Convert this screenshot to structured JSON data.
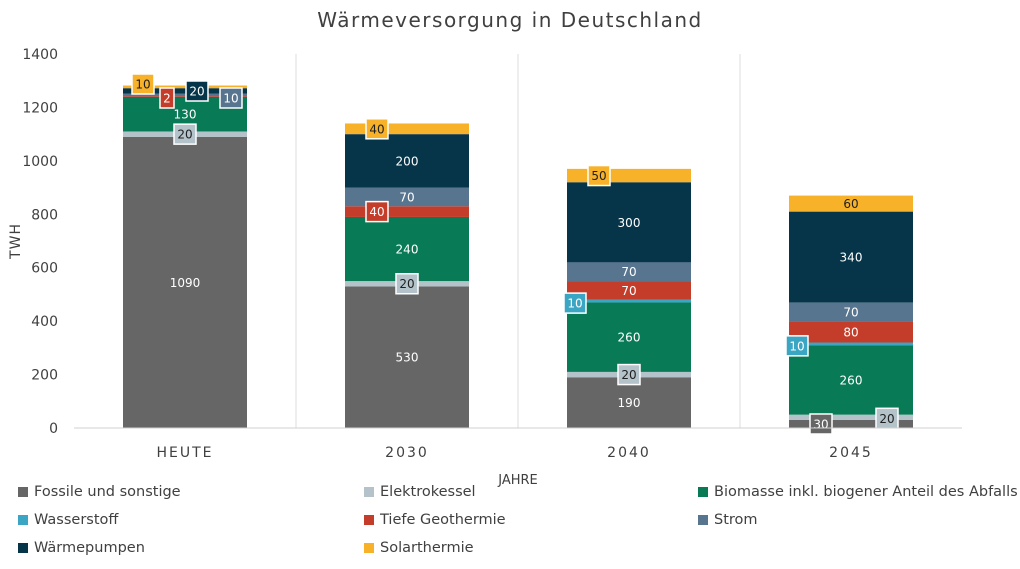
{
  "chart_data": {
    "type": "bar",
    "stacked": true,
    "title": "Wärmeversorgung in Deutschland",
    "xlabel": "JAHRE",
    "ylabel": "TWH",
    "ylim": [
      0,
      1400
    ],
    "yticks": [
      0,
      200,
      400,
      600,
      800,
      1000,
      1200,
      1400
    ],
    "categories": [
      "HEUTE",
      "2030",
      "2040",
      "2045"
    ],
    "grid": "vertical separators",
    "legend_position": "bottom",
    "series": [
      {
        "name": "Fossile und sonstige",
        "color": "#666666",
        "values": [
          1090,
          530,
          190,
          30
        ],
        "labels": [
          "1090",
          "530",
          "190",
          "30"
        ]
      },
      {
        "name": "Elektrokessel",
        "color": "#b3c3c9",
        "values": [
          20,
          20,
          20,
          20
        ],
        "labels": [
          "20",
          "20",
          "20",
          "20"
        ]
      },
      {
        "name": "Biomasse inkl. biogener Anteil des Abfalls",
        "color": "#087a55",
        "values": [
          130,
          240,
          260,
          260
        ],
        "labels": [
          "130",
          "240",
          "260",
          "260"
        ]
      },
      {
        "name": "Wasserstoff",
        "color": "#3aa6c4",
        "values": [
          0,
          0,
          10,
          10
        ],
        "labels": [
          "",
          "",
          "10",
          "10"
        ]
      },
      {
        "name": "Tiefe Geothermie",
        "color": "#c43c2a",
        "values": [
          2,
          40,
          70,
          80
        ],
        "labels": [
          "2",
          "40",
          "70",
          "80"
        ]
      },
      {
        "name": "Strom",
        "color": "#587590",
        "values": [
          10,
          70,
          70,
          70
        ],
        "labels": [
          "10",
          "70",
          "70",
          "70"
        ]
      },
      {
        "name": "Wärmepumpen",
        "color": "#06354a",
        "values": [
          20,
          200,
          300,
          340
        ],
        "labels": [
          "20",
          "200",
          "300",
          "340"
        ]
      },
      {
        "name": "Solarthermie",
        "color": "#f7b22a",
        "values": [
          10,
          40,
          50,
          60
        ],
        "labels": [
          "10",
          "40",
          "50",
          "60"
        ]
      }
    ]
  }
}
